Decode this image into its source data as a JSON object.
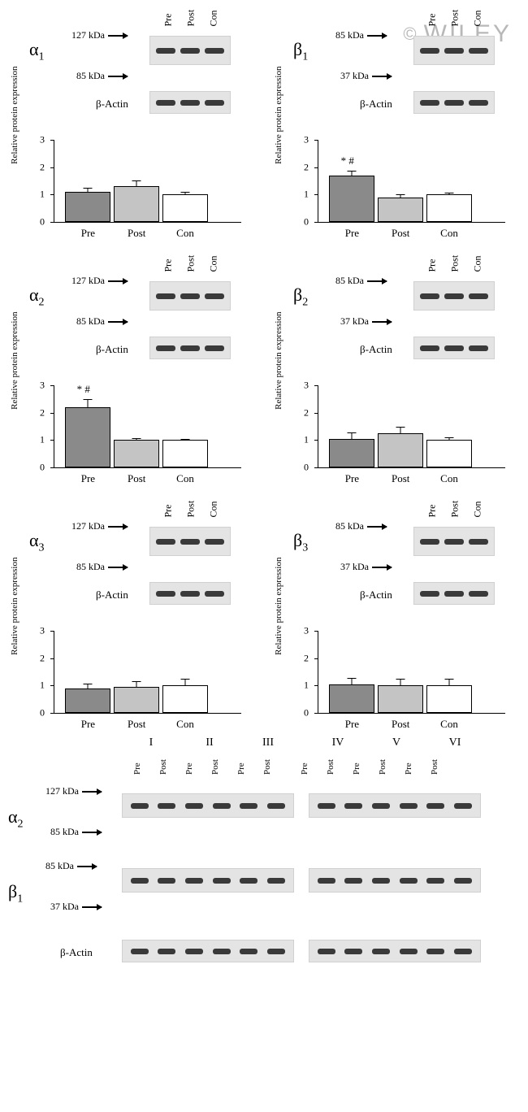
{
  "watermark": {
    "copyright": "©",
    "text": "WILEY"
  },
  "lane_names": [
    "Pre",
    "Post",
    "Con"
  ],
  "y_axis_label": "Relative protein expression",
  "actin_label": "β-Actin",
  "y_ticks": [
    0,
    1,
    2,
    3
  ],
  "colors": {
    "pre_bar": "#8a8a8a",
    "post_bar": "#c4c4c4",
    "con_bar": "#ffffff",
    "blot_bg": "#e4e4e4",
    "band_dark": "#3a3a3a"
  },
  "panels": {
    "a1": {
      "label_html": "α",
      "sub": "1",
      "kda_top": "127 kDa",
      "kda_bot": "85 kDa",
      "values": [
        1.1,
        1.3,
        1.0
      ],
      "err": [
        0.18,
        0.26,
        0.14
      ],
      "sig": ""
    },
    "b1": {
      "label_html": "β",
      "sub": "1",
      "kda_top": "85 kDa",
      "kda_bot": "37 kDa",
      "values": [
        1.7,
        0.9,
        1.0
      ],
      "err": [
        0.2,
        0.14,
        0.1
      ],
      "sig": "* #"
    },
    "a2": {
      "label_html": "α",
      "sub": "2",
      "kda_top": "127 kDa",
      "kda_bot": "85 kDa",
      "values": [
        2.2,
        1.0,
        1.0
      ],
      "err": [
        0.32,
        0.12,
        0.08
      ],
      "sig": "* #"
    },
    "b2": {
      "label_html": "β",
      "sub": "2",
      "kda_top": "85 kDa",
      "kda_bot": "37 kDa",
      "values": [
        1.05,
        1.25,
        1.0
      ],
      "err": [
        0.28,
        0.28,
        0.14
      ],
      "sig": ""
    },
    "a3": {
      "label_html": "α",
      "sub": "3",
      "kda_top": "127 kDa",
      "kda_bot": "85 kDa",
      "values": [
        0.9,
        0.95,
        1.0
      ],
      "err": [
        0.22,
        0.26,
        0.28
      ],
      "sig": ""
    },
    "b3": {
      "label_html": "β",
      "sub": "3",
      "kda_top": "85 kDa",
      "kda_bot": "37 kDa",
      "values": [
        1.05,
        1.0,
        1.0
      ],
      "err": [
        0.28,
        0.3,
        0.3
      ],
      "sig": ""
    }
  },
  "bottom": {
    "roman": [
      "I",
      "II",
      "III",
      "IV",
      "V",
      "VI"
    ],
    "pp": [
      "Pre",
      "Post"
    ],
    "rows": [
      {
        "label_html": "α",
        "sub": "2",
        "kda_top": "127 kDa",
        "kda_bot": "85 kDa"
      },
      {
        "label_html": "β",
        "sub": "1",
        "kda_top": "85 kDa",
        "kda_bot": "37 kDa"
      }
    ],
    "actin_label": "β-Actin"
  }
}
